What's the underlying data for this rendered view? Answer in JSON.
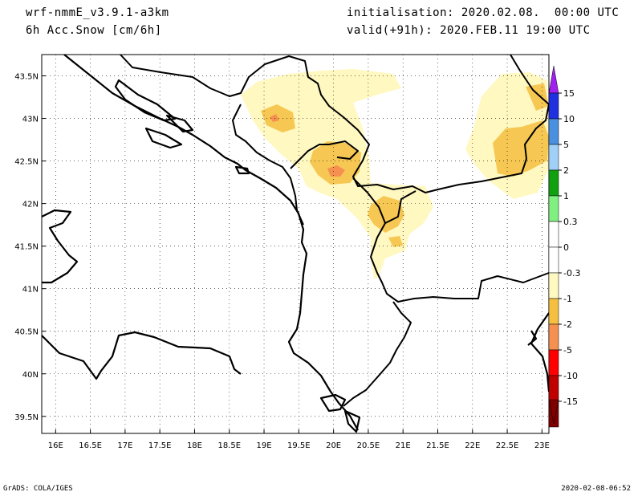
{
  "header": {
    "model": "wrf-nmmE_v3.9.1-a3km",
    "field": "6h Acc.Snow [cm/6h]",
    "init": "initialisation: 2020.02.08.  00:00 UTC",
    "valid": "valid(+91h): 2020.FEB.11 19:00 UTC"
  },
  "footer": {
    "credit": "GrADS: COLA/IGES",
    "timestamp": "2020-02-08-06:52"
  },
  "map": {
    "lon_ticks": [
      "16E",
      "16.5E",
      "17E",
      "17.5E",
      "18E",
      "18.5E",
      "19E",
      "19.5E",
      "20E",
      "20.5E",
      "21E",
      "21.5E",
      "22E",
      "22.5E",
      "23E"
    ],
    "lat_ticks": [
      "43.5N",
      "43N",
      "42.5N",
      "42N",
      "41.5N",
      "41N",
      "40.5N",
      "40N",
      "39.5N"
    ],
    "lon_range": [
      15.8,
      23.1
    ],
    "lat_range": [
      39.3,
      43.75
    ]
  },
  "colorbar": {
    "labels": [
      "15",
      "10",
      "5",
      "2",
      "1",
      "0.3",
      "0",
      "-0.3",
      "-1",
      "-2",
      "-5",
      "-10",
      "-15"
    ],
    "colors": {
      "violet": "#a020f0",
      "blue_dark": "#2030e0",
      "blue_med": "#4a90e0",
      "blue_light": "#a0d0f8",
      "green_dark": "#10a010",
      "green_light": "#80f080",
      "white": "#ffffff",
      "cream": "#fff8c0",
      "orange_light": "#f5c040",
      "orange": "#f59050",
      "red": "#ff0000",
      "dark_red": "#c00000",
      "maroon": "#800000"
    }
  }
}
